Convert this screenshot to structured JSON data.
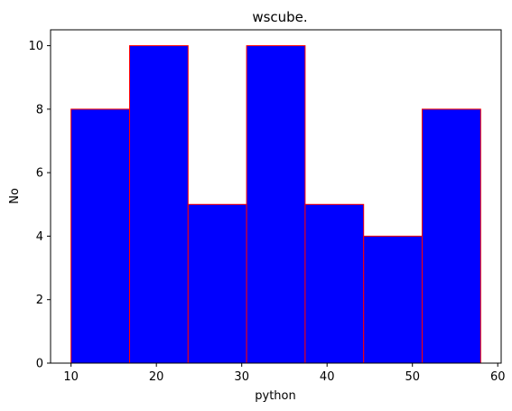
{
  "chart_data": {
    "type": "bar",
    "subtype": "histogram",
    "title": "wscube.",
    "xlabel": "python",
    "ylabel": "No",
    "bin_edges": [
      10,
      16.857,
      23.714,
      30.571,
      37.429,
      44.286,
      51.143,
      58
    ],
    "values": [
      8,
      10,
      5,
      10,
      5,
      4,
      8
    ],
    "xlim": [
      7.6,
      60.4
    ],
    "ylim": [
      0,
      10.5
    ],
    "xticks": [
      10,
      20,
      30,
      40,
      50,
      60
    ],
    "yticks": [
      0,
      2,
      4,
      6,
      8,
      10
    ],
    "grid": false,
    "bar_color": "#0000ff",
    "edge_color": "#ff0000"
  }
}
